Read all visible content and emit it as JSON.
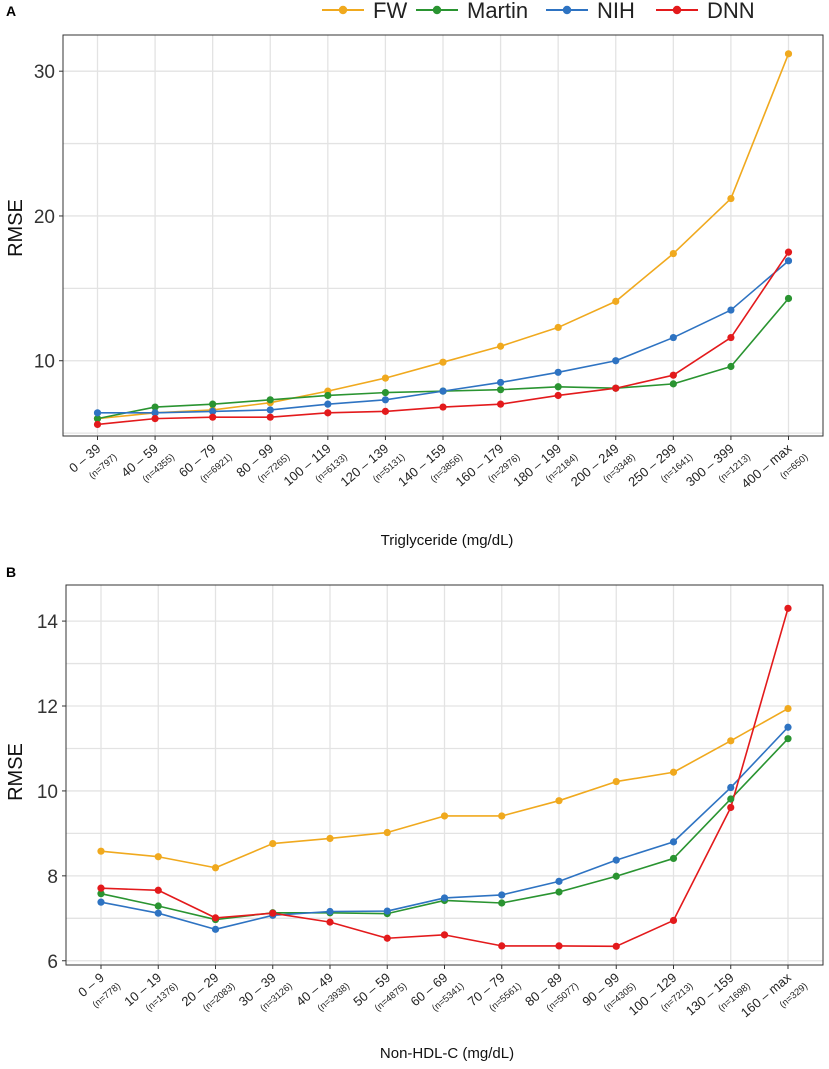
{
  "legend": [
    {
      "name": "FW",
      "color": "#F0A91E"
    },
    {
      "name": "Martin",
      "color": "#2A9431"
    },
    {
      "name": "NIH",
      "color": "#2E73C2"
    },
    {
      "name": "DNN",
      "color": "#E31A1C"
    }
  ],
  "chart_data": [
    {
      "panel": "A",
      "type": "line",
      "xlabel": "Triglyceride (mg/dL)",
      "ylabel": "RMSE",
      "ylim": [
        4.8,
        32.5
      ],
      "yticks": [
        10,
        20,
        30
      ],
      "grid": true,
      "categories": [
        "0 – 39",
        "40 – 59",
        "60 – 79",
        "80 – 99",
        "100 – 119",
        "120 – 139",
        "140 – 159",
        "160 – 179",
        "180 – 199",
        "200 – 249",
        "250 – 299",
        "300 – 399",
        "400 – max"
      ],
      "counts": [
        "(n=797)",
        "(n=4355)",
        "(n=6921)",
        "(n=7265)",
        "(n=6133)",
        "(n=5131)",
        "(n=3856)",
        "(n=2976)",
        "(n=2184)",
        "(n=3348)",
        "(n=1641)",
        "(n=1213)",
        "(n=650)"
      ],
      "series": [
        {
          "name": "FW",
          "color": "#F0A91E",
          "values": [
            6.0,
            6.4,
            6.6,
            7.1,
            7.9,
            8.8,
            9.9,
            11.0,
            12.3,
            14.1,
            17.4,
            21.2,
            31.2
          ]
        },
        {
          "name": "Martin",
          "color": "#2A9431",
          "values": [
            6.0,
            6.8,
            7.0,
            7.3,
            7.6,
            7.8,
            7.9,
            8.0,
            8.2,
            8.1,
            8.4,
            9.6,
            14.3
          ]
        },
        {
          "name": "NIH",
          "color": "#2E73C2",
          "values": [
            6.4,
            6.4,
            6.5,
            6.6,
            7.0,
            7.3,
            7.9,
            8.5,
            9.2,
            10.0,
            11.6,
            13.5,
            16.9
          ]
        },
        {
          "name": "DNN",
          "color": "#E31A1C",
          "values": [
            5.6,
            6.0,
            6.1,
            6.1,
            6.4,
            6.5,
            6.8,
            7.0,
            7.6,
            8.1,
            9.0,
            11.6,
            17.5
          ]
        }
      ]
    },
    {
      "panel": "B",
      "type": "line",
      "xlabel": "Non-HDL-C (mg/dL)",
      "ylabel": "RMSE",
      "ylim": [
        5.9,
        14.85
      ],
      "yticks": [
        6,
        8,
        10,
        12,
        14
      ],
      "grid": true,
      "categories": [
        "0 – 9",
        "10 – 19",
        "20 – 29",
        "30 – 39",
        "40 – 49",
        "50 – 59",
        "60 – 69",
        "70 – 79",
        "80 – 89",
        "90 – 99",
        "100 – 129",
        "130 – 159",
        "160 – max"
      ],
      "counts": [
        "(n=778)",
        "(n=1376)",
        "(n=2083)",
        "(n=3126)",
        "(n=3938)",
        "(n=4875)",
        "(n=5341)",
        "(n=5561)",
        "(n=5077)",
        "(n=4305)",
        "(n=7213)",
        "(n=1698)",
        "(n=329)"
      ],
      "series": [
        {
          "name": "FW",
          "color": "#F0A91E",
          "values": [
            8.58,
            8.45,
            8.19,
            8.76,
            8.88,
            9.02,
            9.41,
            9.41,
            9.77,
            10.22,
            10.44,
            11.18,
            11.94
          ]
        },
        {
          "name": "Martin",
          "color": "#2A9431",
          "values": [
            7.58,
            7.29,
            6.97,
            7.13,
            7.13,
            7.11,
            7.42,
            7.36,
            7.62,
            7.99,
            8.41,
            9.81,
            11.23
          ]
        },
        {
          "name": "NIH",
          "color": "#2E73C2",
          "values": [
            7.38,
            7.12,
            6.74,
            7.07,
            7.16,
            7.17,
            7.48,
            7.55,
            7.87,
            8.37,
            8.8,
            10.08,
            11.5
          ]
        },
        {
          "name": "DNN",
          "color": "#E31A1C",
          "values": [
            7.71,
            7.66,
            7.01,
            7.12,
            6.91,
            6.53,
            6.61,
            6.35,
            6.35,
            6.34,
            6.95,
            9.61,
            14.3
          ]
        }
      ]
    }
  ]
}
